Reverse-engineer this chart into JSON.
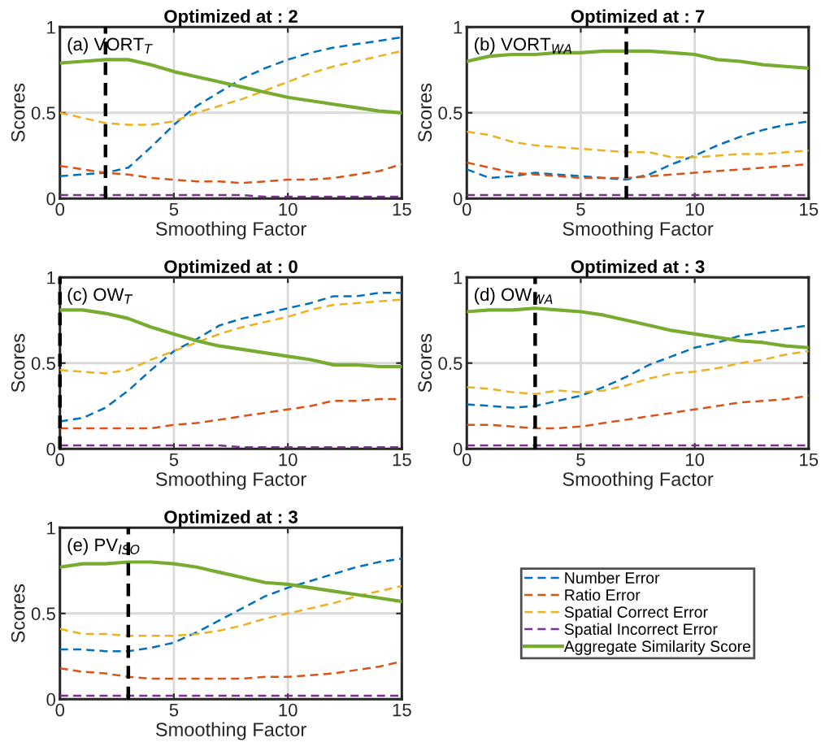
{
  "chart_data": [
    {
      "type": "line",
      "title": "Optimized at : 2",
      "xlabel": "Smoothing Factor",
      "ylabel": "Scores",
      "annotations": [
        "(a) VORT$_{T}$"
      ],
      "x": [
        0,
        1,
        2,
        3,
        4,
        5,
        6,
        7,
        8,
        9,
        10,
        11,
        12,
        13,
        14,
        15
      ],
      "xlim": [
        0,
        15
      ],
      "ylim": [
        0,
        1
      ],
      "xticks": [
        0,
        5,
        10,
        15
      ],
      "yticks": [
        0,
        0.5,
        1
      ],
      "grid": true,
      "legend": false,
      "ref_lines": [
        {
          "axis": "x",
          "value": 2,
          "color": "#000000",
          "line_style": "dashed"
        }
      ],
      "series": [
        {
          "color": "#0072bd",
          "line_style": "dashed",
          "values": [
            0.13,
            0.14,
            0.15,
            0.18,
            0.3,
            0.43,
            0.54,
            0.62,
            0.7,
            0.76,
            0.81,
            0.85,
            0.88,
            0.9,
            0.92,
            0.94
          ]
        },
        {
          "color": "#d95319",
          "line_style": "dashed",
          "values": [
            0.19,
            0.17,
            0.15,
            0.14,
            0.12,
            0.11,
            0.1,
            0.1,
            0.09,
            0.1,
            0.11,
            0.11,
            0.12,
            0.14,
            0.16,
            0.2
          ]
        },
        {
          "color": "#edb120",
          "line_style": "dashed",
          "values": [
            0.5,
            0.47,
            0.44,
            0.43,
            0.43,
            0.45,
            0.5,
            0.54,
            0.58,
            0.63,
            0.68,
            0.73,
            0.77,
            0.8,
            0.83,
            0.86
          ]
        },
        {
          "color": "#7e2f8e",
          "line_style": "dashed",
          "values": [
            0.02,
            0.02,
            0.02,
            0.02,
            0.02,
            0.02,
            0.02,
            0.02,
            0.02,
            0.01,
            0.01,
            0.01,
            0.01,
            0.01,
            0.01,
            0.01
          ]
        },
        {
          "color": "#77ac30",
          "line_style": "solid",
          "values": [
            0.79,
            0.8,
            0.81,
            0.81,
            0.78,
            0.74,
            0.71,
            0.68,
            0.65,
            0.62,
            0.59,
            0.57,
            0.55,
            0.53,
            0.51,
            0.5
          ]
        }
      ]
    },
    {
      "type": "line",
      "title": "Optimized at : 7",
      "xlabel": "Smoothing Factor",
      "ylabel": "Scores",
      "annotations": [
        "(b) VORT$_{WA}$"
      ],
      "x": [
        0,
        1,
        2,
        3,
        4,
        5,
        6,
        7,
        8,
        9,
        10,
        11,
        12,
        13,
        14,
        15
      ],
      "xlim": [
        0,
        15
      ],
      "ylim": [
        0,
        1
      ],
      "xticks": [
        0,
        5,
        10,
        15
      ],
      "yticks": [
        0,
        0.5,
        1
      ],
      "grid": true,
      "legend": false,
      "ref_lines": [
        {
          "axis": "x",
          "value": 7,
          "color": "#000000",
          "line_style": "dashed"
        }
      ],
      "series": [
        {
          "color": "#0072bd",
          "line_style": "dashed",
          "values": [
            0.17,
            0.12,
            0.13,
            0.15,
            0.14,
            0.13,
            0.12,
            0.11,
            0.14,
            0.2,
            0.25,
            0.31,
            0.36,
            0.4,
            0.43,
            0.45
          ]
        },
        {
          "color": "#d95319",
          "line_style": "dashed",
          "values": [
            0.21,
            0.18,
            0.15,
            0.14,
            0.13,
            0.12,
            0.12,
            0.12,
            0.13,
            0.14,
            0.15,
            0.16,
            0.17,
            0.18,
            0.19,
            0.2
          ]
        },
        {
          "color": "#edb120",
          "line_style": "dashed",
          "values": [
            0.39,
            0.37,
            0.33,
            0.31,
            0.3,
            0.29,
            0.28,
            0.27,
            0.27,
            0.24,
            0.24,
            0.25,
            0.26,
            0.26,
            0.27,
            0.28
          ]
        },
        {
          "color": "#7e2f8e",
          "line_style": "dashed",
          "values": [
            0.02,
            0.02,
            0.02,
            0.02,
            0.02,
            0.02,
            0.02,
            0.02,
            0.02,
            0.02,
            0.02,
            0.02,
            0.02,
            0.02,
            0.02,
            0.02
          ]
        },
        {
          "color": "#77ac30",
          "line_style": "solid",
          "values": [
            0.8,
            0.83,
            0.84,
            0.84,
            0.85,
            0.85,
            0.86,
            0.86,
            0.86,
            0.85,
            0.84,
            0.81,
            0.8,
            0.78,
            0.77,
            0.76
          ]
        }
      ]
    },
    {
      "type": "line",
      "title": "Optimized at : 0",
      "xlabel": "Smoothing Factor",
      "ylabel": "Scores",
      "annotations": [
        "(c) OW$_{T}$"
      ],
      "x": [
        0,
        1,
        2,
        3,
        4,
        5,
        6,
        7,
        8,
        9,
        10,
        11,
        12,
        13,
        14,
        15
      ],
      "xlim": [
        0,
        15
      ],
      "ylim": [
        0,
        1
      ],
      "xticks": [
        0,
        5,
        10,
        15
      ],
      "yticks": [
        0,
        0.5,
        1
      ],
      "grid": true,
      "legend": false,
      "ref_lines": [
        {
          "axis": "x",
          "value": 0,
          "color": "#000000",
          "line_style": "dashed"
        }
      ],
      "series": [
        {
          "color": "#0072bd",
          "line_style": "dashed",
          "values": [
            0.16,
            0.18,
            0.24,
            0.34,
            0.46,
            0.57,
            0.64,
            0.72,
            0.76,
            0.79,
            0.82,
            0.85,
            0.89,
            0.89,
            0.91,
            0.91
          ]
        },
        {
          "color": "#d95319",
          "line_style": "dashed",
          "values": [
            0.12,
            0.12,
            0.12,
            0.12,
            0.12,
            0.14,
            0.15,
            0.17,
            0.19,
            0.21,
            0.23,
            0.25,
            0.28,
            0.28,
            0.29,
            0.29
          ]
        },
        {
          "color": "#edb120",
          "line_style": "dashed",
          "values": [
            0.46,
            0.45,
            0.44,
            0.46,
            0.52,
            0.57,
            0.62,
            0.67,
            0.71,
            0.74,
            0.77,
            0.81,
            0.84,
            0.85,
            0.86,
            0.87
          ]
        },
        {
          "color": "#7e2f8e",
          "line_style": "dashed",
          "values": [
            0.02,
            0.02,
            0.02,
            0.02,
            0.02,
            0.02,
            0.02,
            0.02,
            0.01,
            0.01,
            0.01,
            0.01,
            0.01,
            0.01,
            0.01,
            0.01
          ]
        },
        {
          "color": "#77ac30",
          "line_style": "solid",
          "values": [
            0.81,
            0.81,
            0.79,
            0.76,
            0.71,
            0.67,
            0.63,
            0.6,
            0.58,
            0.56,
            0.54,
            0.52,
            0.49,
            0.49,
            0.48,
            0.48
          ]
        }
      ]
    },
    {
      "type": "line",
      "title": "Optimized at : 3",
      "xlabel": "Smoothing Factor",
      "ylabel": "Scores",
      "annotations": [
        "(d) OW$_{WA}$"
      ],
      "x": [
        0,
        1,
        2,
        3,
        4,
        5,
        6,
        7,
        8,
        9,
        10,
        11,
        12,
        13,
        14,
        15
      ],
      "xlim": [
        0,
        15
      ],
      "ylim": [
        0,
        1
      ],
      "xticks": [
        0,
        5,
        10,
        15
      ],
      "yticks": [
        0,
        0.5,
        1
      ],
      "grid": true,
      "legend": false,
      "ref_lines": [
        {
          "axis": "x",
          "value": 3,
          "color": "#000000",
          "line_style": "dashed"
        }
      ],
      "series": [
        {
          "color": "#0072bd",
          "line_style": "dashed",
          "values": [
            0.26,
            0.25,
            0.24,
            0.25,
            0.28,
            0.31,
            0.36,
            0.42,
            0.49,
            0.54,
            0.59,
            0.62,
            0.66,
            0.68,
            0.7,
            0.72
          ]
        },
        {
          "color": "#d95319",
          "line_style": "dashed",
          "values": [
            0.14,
            0.14,
            0.13,
            0.12,
            0.12,
            0.13,
            0.15,
            0.17,
            0.19,
            0.21,
            0.23,
            0.25,
            0.27,
            0.28,
            0.29,
            0.31
          ]
        },
        {
          "color": "#edb120",
          "line_style": "dashed",
          "values": [
            0.36,
            0.35,
            0.33,
            0.32,
            0.34,
            0.33,
            0.34,
            0.37,
            0.41,
            0.44,
            0.45,
            0.47,
            0.5,
            0.52,
            0.55,
            0.57
          ]
        },
        {
          "color": "#7e2f8e",
          "line_style": "dashed",
          "values": [
            0.02,
            0.02,
            0.02,
            0.02,
            0.02,
            0.02,
            0.02,
            0.02,
            0.02,
            0.02,
            0.02,
            0.02,
            0.02,
            0.02,
            0.02,
            0.02
          ]
        },
        {
          "color": "#77ac30",
          "line_style": "solid",
          "values": [
            0.8,
            0.81,
            0.81,
            0.82,
            0.81,
            0.8,
            0.78,
            0.75,
            0.72,
            0.69,
            0.67,
            0.65,
            0.63,
            0.62,
            0.6,
            0.59
          ]
        }
      ]
    },
    {
      "type": "line",
      "title": "Optimized at : 3",
      "xlabel": "Smoothing Factor",
      "ylabel": "Scores",
      "annotations": [
        "(e) PV$_{ISO}$"
      ],
      "x": [
        0,
        1,
        2,
        3,
        4,
        5,
        6,
        7,
        8,
        9,
        10,
        11,
        12,
        13,
        14,
        15
      ],
      "xlim": [
        0,
        15
      ],
      "ylim": [
        0,
        1
      ],
      "xticks": [
        0,
        5,
        10,
        15
      ],
      "yticks": [
        0,
        0.5,
        1
      ],
      "grid": true,
      "legend": "right",
      "ref_lines": [
        {
          "axis": "x",
          "value": 3,
          "color": "#000000",
          "line_style": "dashed"
        }
      ],
      "series": [
        {
          "name": "Number Error",
          "color": "#0072bd",
          "line_style": "dashed",
          "values": [
            0.29,
            0.29,
            0.28,
            0.28,
            0.3,
            0.33,
            0.39,
            0.46,
            0.53,
            0.6,
            0.65,
            0.69,
            0.73,
            0.77,
            0.8,
            0.82
          ]
        },
        {
          "name": "Ratio Error",
          "color": "#d95319",
          "line_style": "dashed",
          "values": [
            0.18,
            0.16,
            0.15,
            0.13,
            0.12,
            0.12,
            0.12,
            0.12,
            0.12,
            0.13,
            0.13,
            0.14,
            0.15,
            0.17,
            0.19,
            0.22
          ]
        },
        {
          "name": "Spatial Correct Error",
          "color": "#edb120",
          "line_style": "dashed",
          "values": [
            0.41,
            0.38,
            0.38,
            0.37,
            0.37,
            0.37,
            0.38,
            0.4,
            0.43,
            0.47,
            0.5,
            0.53,
            0.56,
            0.6,
            0.63,
            0.66
          ]
        },
        {
          "name": "Spatial Incorrect Error",
          "color": "#7e2f8e",
          "line_style": "dashed",
          "values": [
            0.02,
            0.02,
            0.02,
            0.02,
            0.02,
            0.02,
            0.02,
            0.02,
            0.02,
            0.02,
            0.02,
            0.02,
            0.02,
            0.02,
            0.02,
            0.02
          ]
        },
        {
          "name": "Aggregate Similarity Score",
          "color": "#77ac30",
          "line_style": "solid",
          "values": [
            0.77,
            0.79,
            0.79,
            0.8,
            0.8,
            0.79,
            0.77,
            0.74,
            0.71,
            0.68,
            0.67,
            0.65,
            0.63,
            0.61,
            0.59,
            0.57
          ]
        }
      ]
    }
  ]
}
